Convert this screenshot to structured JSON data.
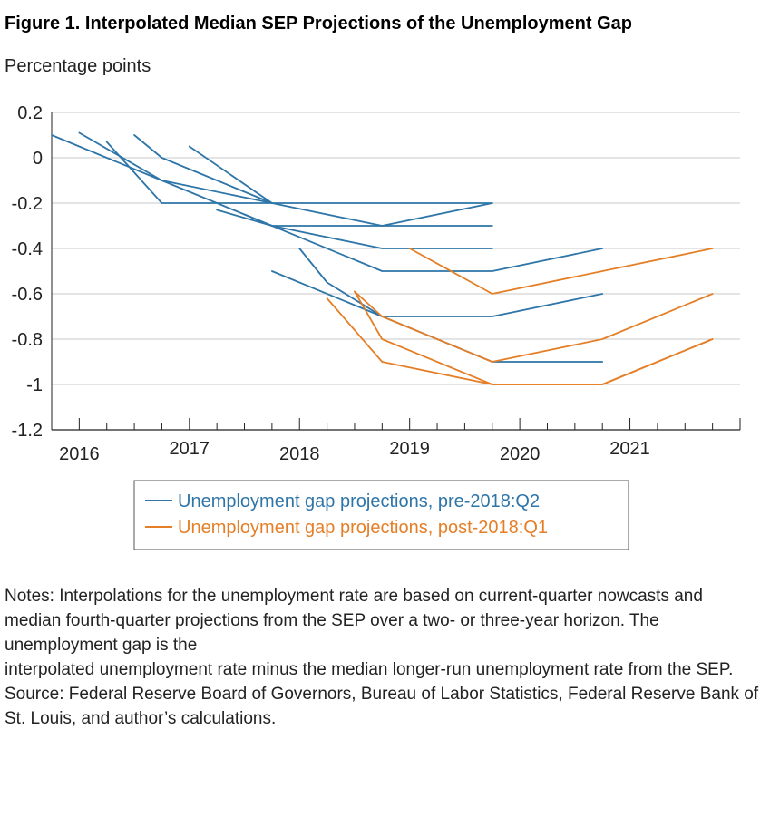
{
  "figure": {
    "title": "Figure 1. Interpolated Median SEP Projections of the Unemployment Gap",
    "units_label": "Percentage points"
  },
  "notes": {
    "line1": "Notes: Interpolations for the unemployment rate are based on current-quarter nowcasts and median fourth-quarter projections from the SEP over a two- or three-year horizon. The unemployment gap is the",
    "line2": "interpolated unemployment rate minus the median longer-run unemployment rate from the SEP.",
    "source": "Source: Federal Reserve Board of Governors, Bureau of Labor Statistics, Federal Reserve Bank of St. Louis, and author’s calculations."
  },
  "colors": {
    "pre": "#2e75a8",
    "post": "#e57f27",
    "grid": "#c8c8c8",
    "axis": "#222222"
  },
  "chart_data": {
    "type": "line",
    "title": "Figure 1. Interpolated Median SEP Projections of the Unemployment Gap",
    "ylabel": "Percentage points",
    "xlim": [
      2015.75,
      2022.0
    ],
    "ylim": [
      -1.2,
      0.2
    ],
    "yticks": [
      0.2,
      0,
      -0.2,
      -0.4,
      -0.6,
      -0.8,
      -1,
      -1.2
    ],
    "ytick_labels": [
      "0.2",
      "0",
      "-0.2",
      "-0.4",
      "-0.6",
      "-0.8",
      "-1",
      "-1.2"
    ],
    "year_labels": [
      {
        "label": "2016",
        "x": 2016.0
      },
      {
        "label": "2017",
        "x": 2017.0
      },
      {
        "label": "2018",
        "x": 2018.0
      },
      {
        "label": "2019",
        "x": 2019.0
      },
      {
        "label": "2020",
        "x": 2020.0
      },
      {
        "label": "2021",
        "x": 2021.0
      }
    ],
    "grid": true,
    "legend_position": "bottom-center",
    "legend": [
      {
        "label": "Unemployment gap projections, pre-2018:Q2",
        "color": "#2e75a8"
      },
      {
        "label": "Unemployment gap projections, post-2018:Q1",
        "color": "#e57f27"
      }
    ],
    "series": [
      {
        "group": "pre",
        "color": "#2e75a8",
        "points": [
          [
            2015.75,
            0.1
          ],
          [
            2016.75,
            -0.1
          ],
          [
            2017.75,
            -0.2
          ],
          [
            2019.75,
            -0.2
          ]
        ]
      },
      {
        "group": "pre",
        "color": "#2e75a8",
        "points": [
          [
            2016.0,
            0.11
          ],
          [
            2016.75,
            -0.1
          ],
          [
            2017.75,
            -0.3
          ],
          [
            2019.75,
            -0.3
          ]
        ]
      },
      {
        "group": "pre",
        "color": "#2e75a8",
        "points": [
          [
            2016.25,
            0.07
          ],
          [
            2016.75,
            -0.2
          ],
          [
            2017.75,
            -0.2
          ],
          [
            2018.75,
            -0.3
          ],
          [
            2019.75,
            -0.2
          ]
        ]
      },
      {
        "group": "pre",
        "color": "#2e75a8",
        "points": [
          [
            2016.5,
            0.1
          ],
          [
            2016.75,
            0.0
          ],
          [
            2017.75,
            -0.2
          ]
        ]
      },
      {
        "group": "pre",
        "color": "#2e75a8",
        "points": [
          [
            2017.0,
            0.05
          ],
          [
            2017.75,
            -0.2
          ]
        ]
      },
      {
        "group": "pre",
        "color": "#2e75a8",
        "points": [
          [
            2017.25,
            -0.23
          ],
          [
            2017.75,
            -0.3
          ],
          [
            2018.75,
            -0.4
          ],
          [
            2019.75,
            -0.4
          ]
        ]
      },
      {
        "group": "pre",
        "color": "#2e75a8",
        "points": [
          [
            2017.5,
            -0.25
          ],
          [
            2017.75,
            -0.3
          ],
          [
            2018.75,
            -0.5
          ],
          [
            2019.75,
            -0.5
          ],
          [
            2020.75,
            -0.4
          ]
        ]
      },
      {
        "group": "pre",
        "color": "#2e75a8",
        "points": [
          [
            2017.75,
            -0.5
          ],
          [
            2018.75,
            -0.7
          ],
          [
            2019.75,
            -0.7
          ],
          [
            2020.75,
            -0.6
          ]
        ]
      },
      {
        "group": "pre",
        "color": "#2e75a8",
        "points": [
          [
            2018.0,
            -0.4
          ],
          [
            2018.25,
            -0.55
          ],
          [
            2018.75,
            -0.7
          ],
          [
            2019.75,
            -0.9
          ],
          [
            2020.75,
            -0.9
          ]
        ]
      },
      {
        "group": "post",
        "color": "#e57f27",
        "points": [
          [
            2019.0,
            -0.4
          ],
          [
            2019.75,
            -0.6
          ],
          [
            2020.75,
            -0.5
          ],
          [
            2021.75,
            -0.4
          ]
        ]
      },
      {
        "group": "post",
        "color": "#e57f27",
        "points": [
          [
            2018.25,
            -0.62
          ],
          [
            2018.75,
            -0.9
          ],
          [
            2019.75,
            -1.0
          ],
          [
            2020.75,
            -1.0
          ],
          [
            2021.75,
            -0.8
          ]
        ]
      },
      {
        "group": "post",
        "color": "#e57f27",
        "points": [
          [
            2018.5,
            -0.59
          ],
          [
            2018.75,
            -0.8
          ],
          [
            2019.75,
            -1.0
          ],
          [
            2020.75,
            -1.0
          ],
          [
            2021.75,
            -0.8
          ]
        ]
      },
      {
        "group": "post",
        "color": "#e57f27",
        "points": [
          [
            2018.5,
            -0.59
          ],
          [
            2018.75,
            -0.7
          ],
          [
            2019.75,
            -0.9
          ],
          [
            2020.75,
            -0.8
          ],
          [
            2021.75,
            -0.6
          ]
        ]
      }
    ]
  }
}
